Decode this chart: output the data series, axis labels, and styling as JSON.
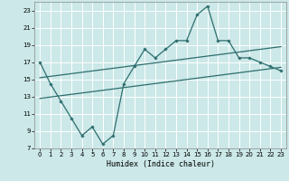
{
  "title": "",
  "xlabel": "Humidex (Indice chaleur)",
  "background_color": "#cce8e8",
  "grid_color": "#ffffff",
  "line_color": "#2e6e6e",
  "x_data": [
    0,
    1,
    2,
    3,
    4,
    5,
    6,
    7,
    8,
    9,
    10,
    11,
    12,
    13,
    14,
    15,
    16,
    17,
    18,
    19,
    20,
    21,
    22,
    23
  ],
  "y_data": [
    17,
    14.5,
    12.5,
    10.5,
    8.5,
    9.5,
    7.5,
    8.5,
    14.5,
    16.5,
    18.5,
    17.5,
    18.5,
    19.5,
    19.5,
    22.5,
    23.5,
    19.5,
    19.5,
    17.5,
    17.5,
    17.0,
    16.5,
    16.0
  ],
  "reg_line1_x": [
    0,
    23
  ],
  "reg_line1_y": [
    15.2,
    18.8
  ],
  "reg_line2_x": [
    0,
    23
  ],
  "reg_line2_y": [
    12.8,
    16.4
  ],
  "xlim": [
    -0.5,
    23.5
  ],
  "ylim": [
    7,
    24
  ],
  "yticks": [
    7,
    9,
    11,
    13,
    15,
    17,
    19,
    21,
    23
  ],
  "xticks": [
    0,
    1,
    2,
    3,
    4,
    5,
    6,
    7,
    8,
    9,
    10,
    11,
    12,
    13,
    14,
    15,
    16,
    17,
    18,
    19,
    20,
    21,
    22,
    23
  ],
  "tick_fontsize": 5,
  "xlabel_fontsize": 6
}
